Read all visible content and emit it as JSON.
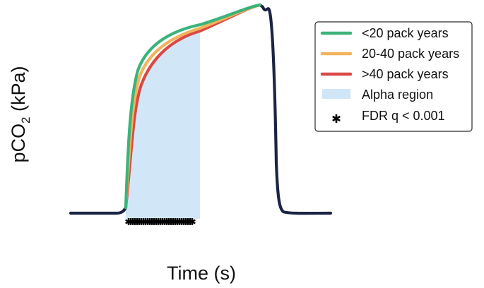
{
  "chart_data": {
    "type": "line",
    "xlabel": "Time (s)",
    "ylabel_main": "pCO",
    "ylabel_sub": "2",
    "ylabel_unit": " (kPa)",
    "series": [
      {
        "name": "<20 pack years",
        "color": "#3bb37a"
      },
      {
        "name": "20-40 pack years",
        "color": "#f2b35c"
      },
      {
        "name": ">40 pack years",
        "color": "#d94a45"
      }
    ],
    "alpha_region": {
      "name": "Alpha region",
      "color": "#cfe6f8"
    },
    "significance": {
      "name": "FDR q < 0.001",
      "marker": "asterisk"
    },
    "common_curve_color": "#1c2444",
    "legend_position": "top-right",
    "axes_visible": false,
    "grid": false
  }
}
